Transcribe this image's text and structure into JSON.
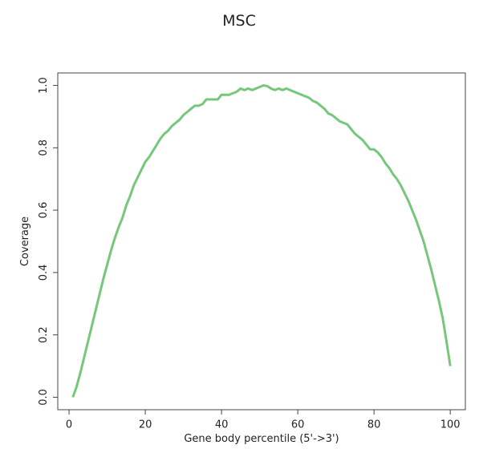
{
  "chart_data": {
    "type": "line",
    "title": "MSC",
    "x_label": "Gene body percentile (5'->3')",
    "y_label": "Coverage",
    "x": [
      1,
      2,
      3,
      4,
      5,
      6,
      7,
      8,
      9,
      10,
      11,
      12,
      13,
      14,
      15,
      16,
      17,
      18,
      19,
      20,
      21,
      22,
      23,
      24,
      25,
      26,
      27,
      28,
      29,
      30,
      31,
      32,
      33,
      34,
      35,
      36,
      37,
      38,
      39,
      40,
      41,
      42,
      43,
      44,
      45,
      46,
      47,
      48,
      49,
      50,
      51,
      52,
      53,
      54,
      55,
      56,
      57,
      58,
      59,
      60,
      61,
      62,
      63,
      64,
      65,
      66,
      67,
      68,
      69,
      70,
      71,
      72,
      73,
      74,
      75,
      76,
      77,
      78,
      79,
      80,
      81,
      82,
      83,
      84,
      85,
      86,
      87,
      88,
      89,
      90,
      91,
      92,
      93,
      94,
      95,
      96,
      97,
      98,
      99,
      100
    ],
    "series": [
      {
        "color": "#77c77a",
        "values": [
          0.0,
          0.035,
          0.08,
          0.13,
          0.18,
          0.23,
          0.28,
          0.33,
          0.38,
          0.425,
          0.47,
          0.51,
          0.545,
          0.575,
          0.615,
          0.645,
          0.68,
          0.705,
          0.73,
          0.755,
          0.77,
          0.79,
          0.81,
          0.83,
          0.845,
          0.855,
          0.87,
          0.88,
          0.89,
          0.905,
          0.915,
          0.925,
          0.935,
          0.935,
          0.94,
          0.955,
          0.955,
          0.955,
          0.955,
          0.97,
          0.97,
          0.97,
          0.975,
          0.98,
          0.99,
          0.985,
          0.99,
          0.985,
          0.99,
          0.995,
          1.0,
          0.998,
          0.99,
          0.985,
          0.99,
          0.985,
          0.99,
          0.985,
          0.98,
          0.975,
          0.97,
          0.965,
          0.96,
          0.95,
          0.945,
          0.935,
          0.925,
          0.91,
          0.905,
          0.895,
          0.885,
          0.88,
          0.875,
          0.86,
          0.845,
          0.835,
          0.825,
          0.81,
          0.795,
          0.795,
          0.785,
          0.77,
          0.75,
          0.735,
          0.715,
          0.7,
          0.68,
          0.655,
          0.63,
          0.6,
          0.57,
          0.535,
          0.5,
          0.455,
          0.41,
          0.36,
          0.31,
          0.255,
          0.18,
          0.1
        ]
      }
    ],
    "xlim": [
      -2.96,
      103.96
    ],
    "ylim": [
      -0.04,
      1.04
    ],
    "xticks": [
      0,
      20,
      40,
      60,
      80,
      100
    ],
    "yticks": [
      {
        "value": 0,
        "label": "0.0"
      },
      {
        "value": 0.2,
        "label": "0.2"
      },
      {
        "value": 0.4,
        "label": "0.4"
      },
      {
        "value": 0.6,
        "label": "0.6"
      },
      {
        "value": 0.8,
        "label": "0.8"
      },
      {
        "value": 1,
        "label": "1.0"
      }
    ]
  }
}
